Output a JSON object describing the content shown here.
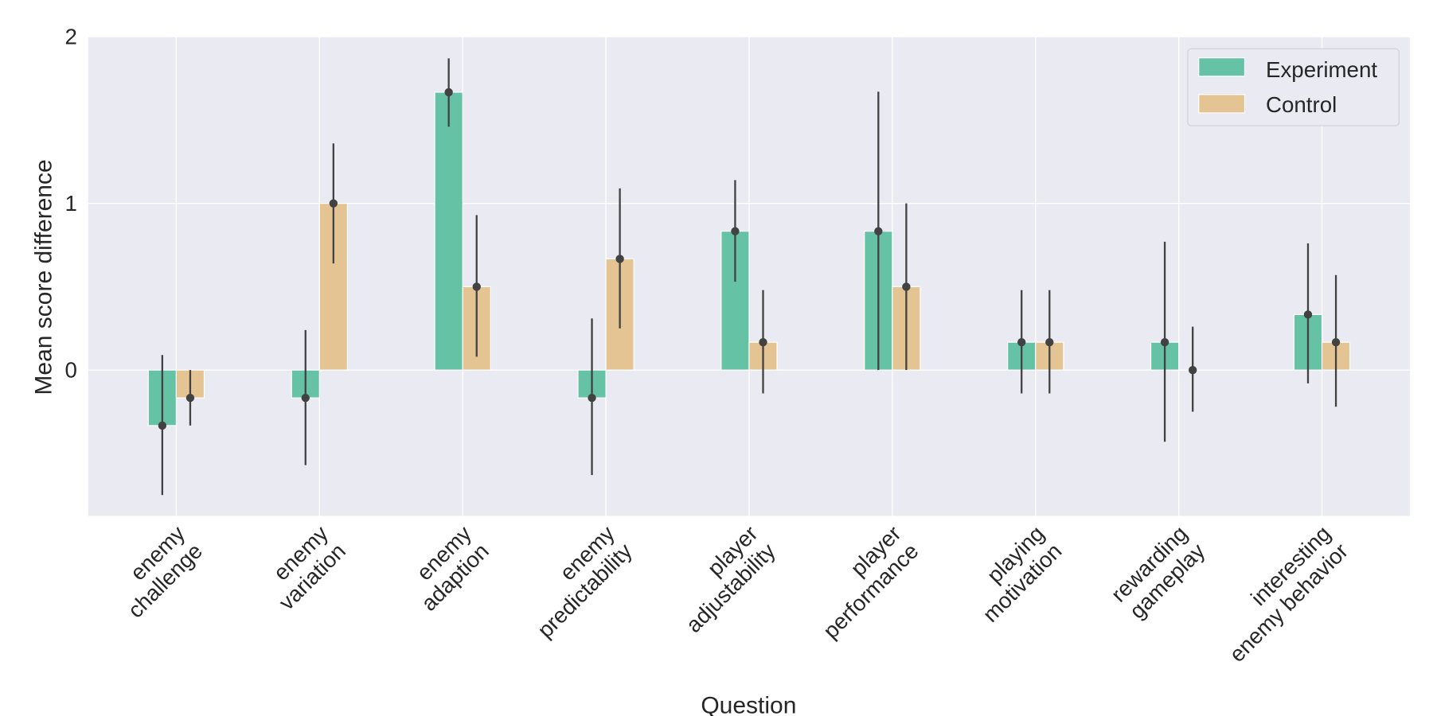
{
  "chart_data": {
    "type": "bar",
    "title": "",
    "xlabel": "Question",
    "ylabel": "Mean score difference",
    "ylim": [
      -0.875,
      2
    ],
    "yticks": [
      "0",
      "1",
      "2"
    ],
    "grid": true,
    "legend_position": "top-right",
    "categories": [
      [
        "enemy",
        "challenge"
      ],
      [
        "enemy",
        "variation"
      ],
      [
        "enemy",
        "adaption"
      ],
      [
        "enemy",
        "predictability"
      ],
      [
        "player",
        "adjustability"
      ],
      [
        "player",
        "performance"
      ],
      [
        "playing",
        "motivation"
      ],
      [
        "rewarding",
        "gameplay"
      ],
      [
        "interesting",
        "enemy behavior"
      ]
    ],
    "series": [
      {
        "name": "Experiment",
        "color": "#66c2a5",
        "values": [
          -0.333,
          -0.167,
          1.667,
          -0.167,
          0.833,
          0.833,
          0.167,
          0.167,
          0.333
        ],
        "err_low": [
          -0.75,
          -0.57,
          1.46,
          -0.63,
          0.53,
          0.0,
          -0.14,
          -0.43,
          -0.08
        ],
        "err_high": [
          0.09,
          0.24,
          1.87,
          0.31,
          1.14,
          1.67,
          0.48,
          0.77,
          0.76
        ]
      },
      {
        "name": "Control",
        "color": "#e5c494",
        "values": [
          -0.167,
          1.0,
          0.5,
          0.667,
          0.167,
          0.5,
          0.167,
          0.0,
          0.167
        ],
        "err_low": [
          -0.333,
          0.64,
          0.08,
          0.25,
          -0.14,
          0.0,
          -0.14,
          -0.25,
          -0.22
        ],
        "err_high": [
          0.0,
          1.36,
          0.93,
          1.09,
          0.48,
          1.0,
          0.48,
          0.26,
          0.57
        ]
      }
    ],
    "colors": {
      "background": "#eaeaf2",
      "grid": "#ffffff",
      "errorbar": "#424242",
      "text": "#262626"
    }
  }
}
